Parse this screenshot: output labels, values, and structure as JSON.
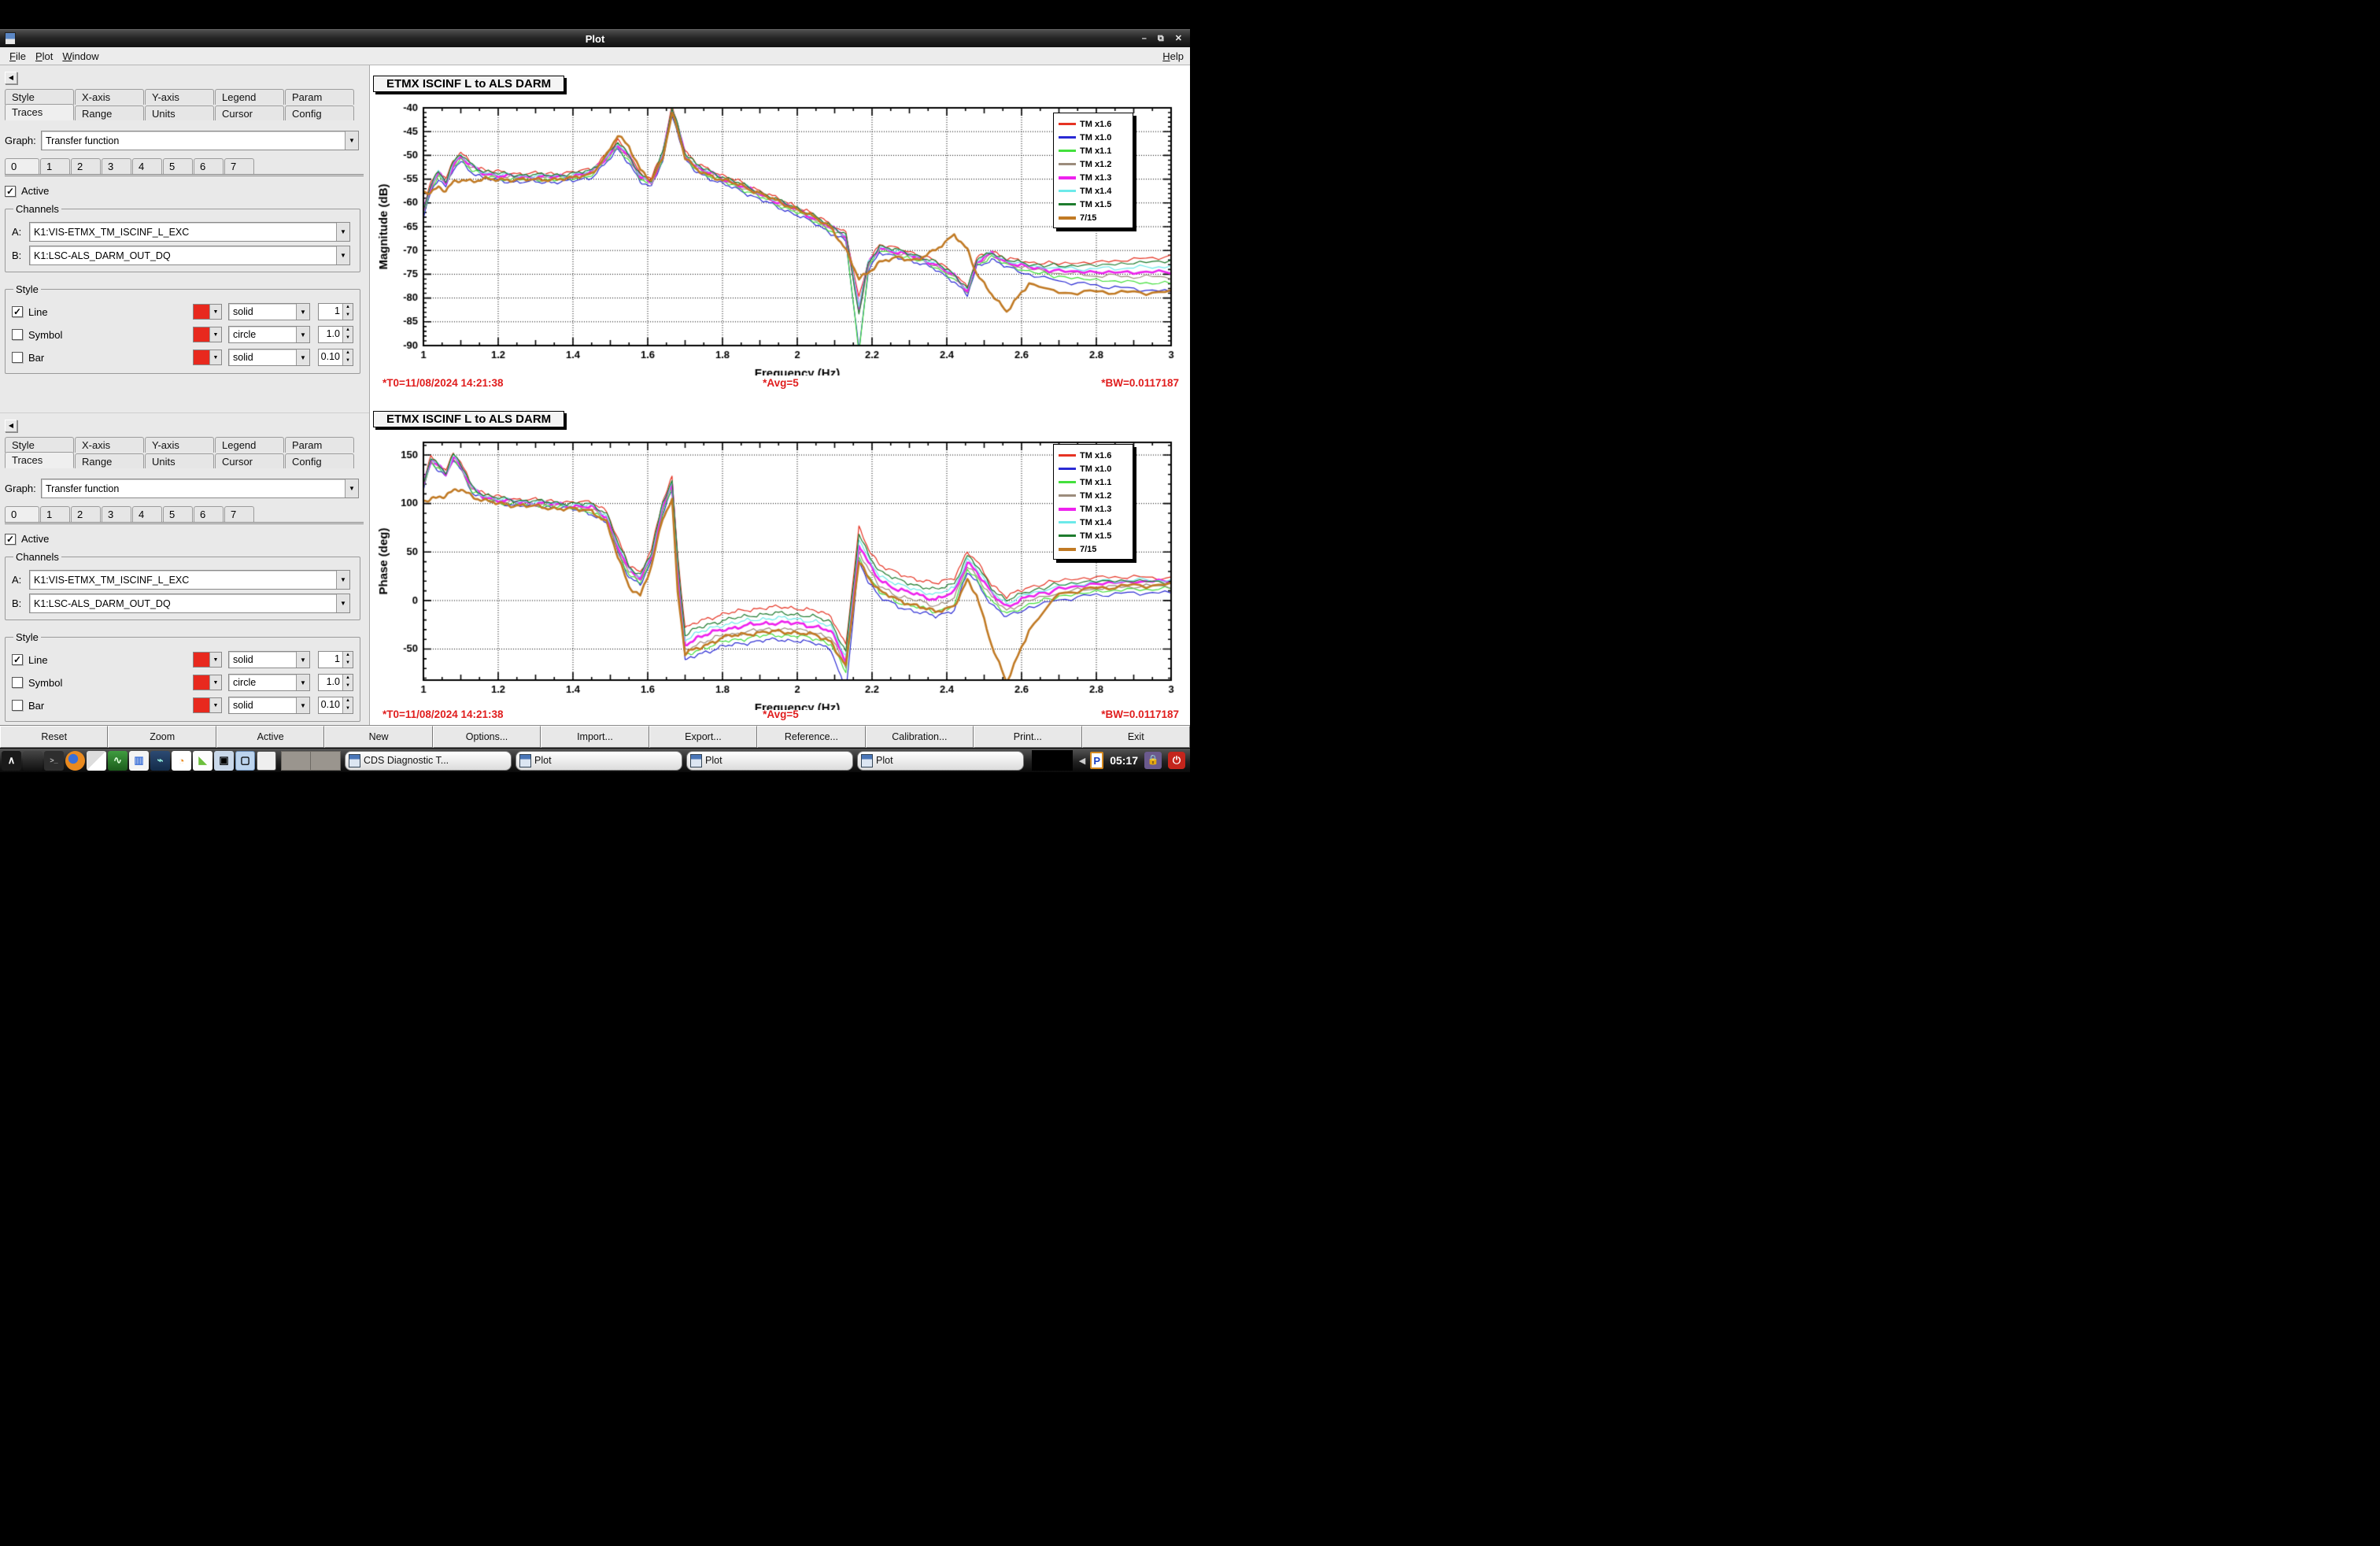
{
  "window": {
    "title": "Plot",
    "menu": {
      "file": "File",
      "plot": "Plot",
      "window": "Window",
      "help": "Help"
    },
    "controls": {
      "minimize": "–",
      "restore": "⧉",
      "close": "✕"
    }
  },
  "panels": [
    {
      "tabs_row1": [
        "Style",
        "X-axis",
        "Y-axis",
        "Legend",
        "Param"
      ],
      "tabs_row2": [
        "Traces",
        "Range",
        "Units",
        "Cursor",
        "Config"
      ],
      "active_tab": "Traces",
      "graph_label": "Graph:",
      "graph_value": "Transfer function",
      "trace_tabs": [
        "0",
        "1",
        "2",
        "3",
        "4",
        "5",
        "6",
        "7"
      ],
      "active_trace": "0",
      "active_label": "Active",
      "active_checked": true,
      "channels": {
        "title": "Channels",
        "a_label": "A:",
        "a_value": "K1:VIS-ETMX_TM_ISCINF_L_EXC",
        "b_label": "B:",
        "b_value": "K1:LSC-ALS_DARM_OUT_DQ"
      },
      "style_group": {
        "title": "Style",
        "rows": [
          {
            "label": "Line",
            "checked": true,
            "color": "#e8291e",
            "style": "solid",
            "size": "1"
          },
          {
            "label": "Symbol",
            "checked": false,
            "color": "#e8291e",
            "style": "circle",
            "size": "1.0"
          },
          {
            "label": "Bar",
            "checked": false,
            "color": "#e8291e",
            "style": "solid",
            "size": "0.10"
          }
        ]
      }
    },
    {
      "tabs_row1": [
        "Style",
        "X-axis",
        "Y-axis",
        "Legend",
        "Param"
      ],
      "tabs_row2": [
        "Traces",
        "Range",
        "Units",
        "Cursor",
        "Config"
      ],
      "active_tab": "Traces",
      "graph_label": "Graph:",
      "graph_value": "Transfer function",
      "trace_tabs": [
        "0",
        "1",
        "2",
        "3",
        "4",
        "5",
        "6",
        "7"
      ],
      "active_trace": "0",
      "active_label": "Active",
      "active_checked": true,
      "channels": {
        "title": "Channels",
        "a_label": "A:",
        "a_value": "K1:VIS-ETMX_TM_ISCINF_L_EXC",
        "b_label": "B:",
        "b_value": "K1:LSC-ALS_DARM_OUT_DQ"
      },
      "style_group": {
        "title": "Style",
        "rows": [
          {
            "label": "Line",
            "checked": true,
            "color": "#e8291e",
            "style": "solid",
            "size": "1"
          },
          {
            "label": "Symbol",
            "checked": false,
            "color": "#e8291e",
            "style": "circle",
            "size": "1.0"
          },
          {
            "label": "Bar",
            "checked": false,
            "color": "#e8291e",
            "style": "solid",
            "size": "0.10"
          }
        ]
      }
    }
  ],
  "plots": [
    {
      "title": "ETMX ISCINF L to ALS DARM",
      "annotations": {
        "t0": "*T0=11/08/2024 14:21:38",
        "avg": "*Avg=5",
        "bw": "*BW=0.0117187"
      }
    },
    {
      "title": "ETMX ISCINF L to ALS DARM",
      "annotations": {
        "t0": "*T0=11/08/2024 14:21:38",
        "avg": "*Avg=5",
        "bw": "*BW=0.0117187"
      }
    }
  ],
  "chart_data": [
    {
      "type": "line",
      "title": "ETMX ISCINF L to ALS DARM",
      "xlabel": "Frequency (Hz)",
      "ylabel": "Magnitude (dB)",
      "xlim": [
        1,
        3
      ],
      "ylim": [
        -90,
        -40
      ],
      "xticks": [
        "1",
        "1.2",
        "1.4",
        "1.6",
        "1.8",
        "2",
        "2.2",
        "2.4",
        "2.6",
        "2.8",
        "3"
      ],
      "yticks": [
        "-40",
        "-45",
        "-50",
        "-55",
        "-60",
        "-65",
        "-70",
        "-75",
        "-80",
        "-85",
        "-90"
      ],
      "grid": true,
      "legend_position": "top-right",
      "noise_amp": 0.5,
      "offset_weighted": false,
      "notch_index": 33,
      "tail_blend_start": 2.56,
      "x": [
        1.0,
        1.02,
        1.04,
        1.06,
        1.08,
        1.1,
        1.13,
        1.16,
        1.2,
        1.25,
        1.3,
        1.35,
        1.4,
        1.45,
        1.49,
        1.52,
        1.55,
        1.58,
        1.61,
        1.64,
        1.665,
        1.68,
        1.7,
        1.73,
        1.76,
        1.8,
        1.85,
        1.9,
        1.95,
        2.0,
        2.05,
        2.09,
        2.13,
        2.165,
        2.19,
        2.22,
        2.27,
        2.32,
        2.37,
        2.42,
        2.455,
        2.48,
        2.52,
        2.56,
        2.62,
        2.7,
        2.8,
        2.9,
        3.0
      ],
      "base_values": [
        -62,
        -56.5,
        -53.8,
        -55.8,
        -52,
        -50.3,
        -52.5,
        -53.8,
        -54.3,
        -54.6,
        -54.6,
        -54.6,
        -54.4,
        -53.6,
        -50.5,
        -47.8,
        -50.5,
        -54.5,
        -55.8,
        -50,
        -40.5,
        -44,
        -50,
        -52.5,
        -53.6,
        -55,
        -56.5,
        -58.2,
        -60,
        -61.5,
        -63.5,
        -65.3,
        -67,
        -80,
        -73,
        -69.5,
        -70.5,
        -71.5,
        -73,
        -75.5,
        -78.5,
        -72.5,
        -70.8,
        -72.5,
        -73.5,
        -74.3,
        -74.8,
        -75,
        -75
      ],
      "series": [
        {
          "name": "TM x1.6",
          "color": "#e63323",
          "width": 1.2,
          "offset": 0.8,
          "tail": -71.2,
          "notch_extra": -1
        },
        {
          "name": "TM x1.0",
          "color": "#2a2ad4",
          "width": 1.2,
          "offset": -1.0,
          "tail": -78.7,
          "notch_extra": -10
        },
        {
          "name": "TM x1.1",
          "color": "#43e03c",
          "width": 1.2,
          "offset": -0.5,
          "tail": -77.0,
          "notch_extra": -11
        },
        {
          "name": "TM x1.2",
          "color": "#9c8c7c",
          "width": 1.2,
          "offset": -0.1,
          "tail": -75.6,
          "notch_extra": -3
        },
        {
          "name": "TM x1.3",
          "color": "#ee22ee",
          "width": 2.6,
          "offset": 0.1,
          "tail": -74.5,
          "notch_extra": -2
        },
        {
          "name": "TM x1.4",
          "color": "#6ceaea",
          "width": 1.2,
          "offset": 0.3,
          "tail": -73.3,
          "notch_extra": -2
        },
        {
          "name": "TM x1.5",
          "color": "#1e7c2e",
          "width": 1.2,
          "offset": 0.5,
          "tail": -72.1,
          "notch_extra": -4
        },
        {
          "name": "7/15",
          "color": "#c17a24",
          "width": 2.6,
          "offset": 0,
          "tail": -78.8,
          "values": [
            -57.5,
            -57.8,
            -56.5,
            -57.5,
            -55.8,
            -55.2,
            -55.3,
            -55,
            -55.2,
            -55,
            -55.2,
            -55,
            -54.8,
            -53.8,
            -50,
            -45.8,
            -48,
            -53,
            -55.5,
            -50.5,
            -41,
            -44.5,
            -50.5,
            -53,
            -54,
            -55.2,
            -56.3,
            -58,
            -59.8,
            -61.3,
            -63.3,
            -65,
            -70,
            -76,
            -74.5,
            -72.5,
            -71.5,
            -72,
            -70,
            -66.5,
            -70,
            -75,
            -79,
            -83,
            -76.5,
            -79,
            -78.5,
            -79,
            -78.8
          ]
        }
      ]
    },
    {
      "type": "line",
      "title": "ETMX ISCINF L to ALS DARM",
      "xlabel": "Frequency (Hz)",
      "ylabel": "Phase (deg)",
      "xlim": [
        1,
        3
      ],
      "ylim": [
        -82,
        163
      ],
      "xticks": [
        "1",
        "1.2",
        "1.4",
        "1.6",
        "1.8",
        "2",
        "2.2",
        "2.4",
        "2.6",
        "2.8",
        "3"
      ],
      "yticks": [
        "150",
        "100",
        "50",
        "0",
        "-50"
      ],
      "grid": true,
      "legend_position": "top-right",
      "noise_amp": 2.6,
      "offset_weighted": true,
      "notch_index": 32,
      "tail_blend_start": 2.62,
      "x": [
        1.0,
        1.02,
        1.04,
        1.06,
        1.08,
        1.1,
        1.13,
        1.16,
        1.2,
        1.25,
        1.3,
        1.35,
        1.4,
        1.45,
        1.49,
        1.52,
        1.55,
        1.58,
        1.61,
        1.64,
        1.665,
        1.68,
        1.7,
        1.73,
        1.76,
        1.8,
        1.85,
        1.9,
        1.95,
        2.0,
        2.05,
        2.09,
        2.13,
        2.165,
        2.19,
        2.22,
        2.27,
        2.32,
        2.37,
        2.42,
        2.455,
        2.48,
        2.52,
        2.56,
        2.62,
        2.7,
        2.8,
        2.9,
        3.0
      ],
      "base_values": [
        118,
        145,
        138,
        130,
        148,
        138,
        115,
        107,
        103,
        101,
        100,
        99,
        97,
        95,
        85,
        55,
        30,
        22,
        45,
        95,
        120,
        30,
        -48,
        -42,
        -38,
        -33,
        -30,
        -27,
        -26,
        -27,
        -30,
        -35,
        -65,
        55,
        35,
        18,
        8,
        3,
        -2,
        5,
        38,
        28,
        5,
        -8,
        2,
        8,
        13,
        16,
        20
      ],
      "series": [
        {
          "name": "TM x1.6",
          "color": "#e63323",
          "width": 1.2,
          "offset": 12,
          "tail": 23
        },
        {
          "name": "TM x1.0",
          "color": "#2a2ad4",
          "width": 1.2,
          "offset": -9,
          "tail": 8,
          "notch_extra": -15
        },
        {
          "name": "TM x1.1",
          "color": "#43e03c",
          "width": 1.2,
          "offset": -6,
          "tail": 12
        },
        {
          "name": "TM x1.2",
          "color": "#9c8c7c",
          "width": 1.2,
          "offset": -2,
          "tail": 15
        },
        {
          "name": "TM x1.3",
          "color": "#ee22ee",
          "width": 2.6,
          "offset": 2,
          "tail": 20
        },
        {
          "name": "TM x1.4",
          "color": "#6ceaea",
          "width": 1.2,
          "offset": 5,
          "tail": 21
        },
        {
          "name": "TM x1.5",
          "color": "#1e7c2e",
          "width": 1.2,
          "offset": 8,
          "tail": 19
        },
        {
          "name": "7/15",
          "color": "#c17a24",
          "width": 2.6,
          "offset": 0,
          "tail": 16,
          "values": [
            103,
            105,
            107,
            108,
            112,
            115,
            108,
            103,
            100,
            98,
            97,
            95,
            94,
            93,
            80,
            45,
            15,
            5,
            35,
            85,
            105,
            10,
            -55,
            -50,
            -45,
            -38,
            -35,
            -33,
            -32,
            -33,
            -36,
            -42,
            -68,
            40,
            25,
            10,
            0,
            -5,
            -12,
            -5,
            20,
            5,
            -45,
            -85,
            -30,
            5,
            10,
            14,
            18
          ]
        }
      ]
    }
  ],
  "bottom_buttons": [
    "Reset",
    "Zoom",
    "Active",
    "New",
    "Options...",
    "Import...",
    "Export...",
    "Reference...",
    "Calibration...",
    "Print...",
    "Exit"
  ],
  "taskbar": {
    "tasks": [
      "CDS Diagnostic T...",
      "Plot",
      "Plot",
      "Plot"
    ],
    "clock": "05:17"
  }
}
